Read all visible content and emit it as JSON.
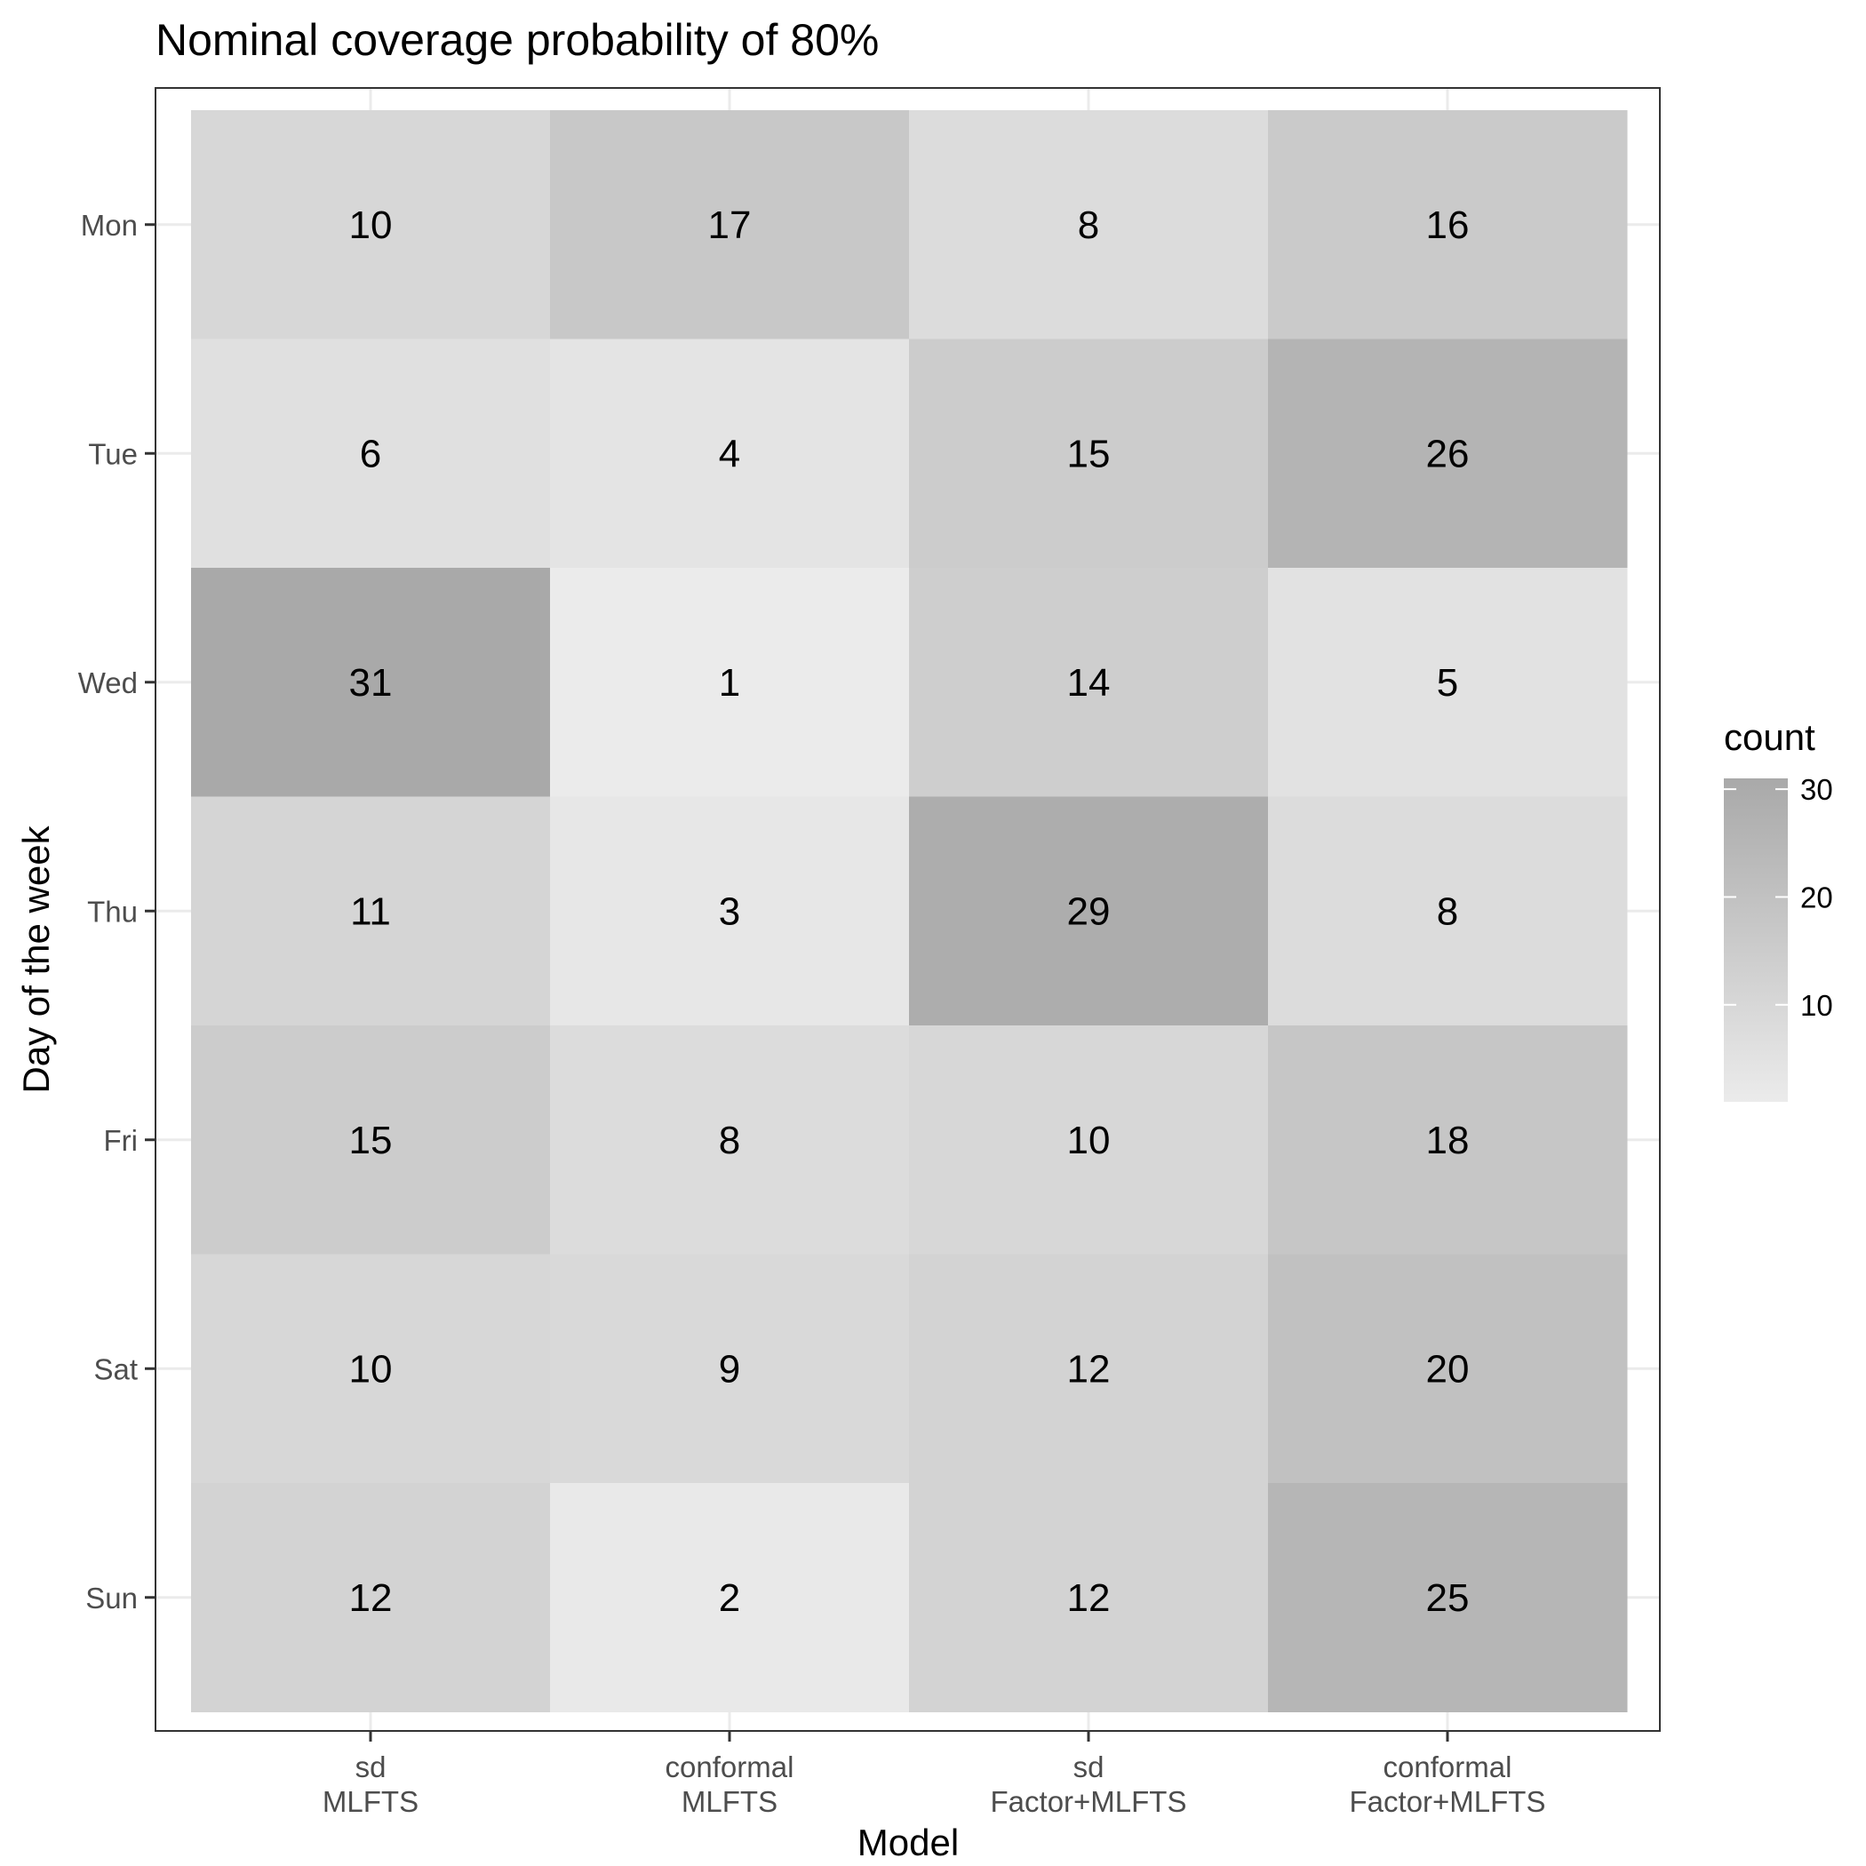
{
  "chart_data": {
    "type": "heatmap",
    "title": "Nominal coverage probability of 80%",
    "xlabel": "Model",
    "ylabel": "Day of the week",
    "x_categories": [
      [
        "sd",
        "MLFTS"
      ],
      [
        "conformal",
        "MLFTS"
      ],
      [
        "sd",
        "Factor+MLFTS"
      ],
      [
        "conformal",
        "Factor+MLFTS"
      ]
    ],
    "y_categories": [
      "Mon",
      "Tue",
      "Wed",
      "Thu",
      "Fri",
      "Sat",
      "Sun"
    ],
    "values": [
      [
        10,
        17,
        8,
        16
      ],
      [
        6,
        4,
        15,
        26
      ],
      [
        31,
        1,
        14,
        5
      ],
      [
        11,
        3,
        29,
        8
      ],
      [
        15,
        8,
        10,
        18
      ],
      [
        10,
        9,
        12,
        20
      ],
      [
        12,
        2,
        12,
        25
      ]
    ],
    "legend": {
      "title": "count",
      "ticks": [
        10,
        20,
        30
      ],
      "range": [
        1,
        31
      ],
      "low_color": "#ebebeb",
      "high_color": "#a9a9a9",
      "position": "right"
    },
    "grid": true
  }
}
